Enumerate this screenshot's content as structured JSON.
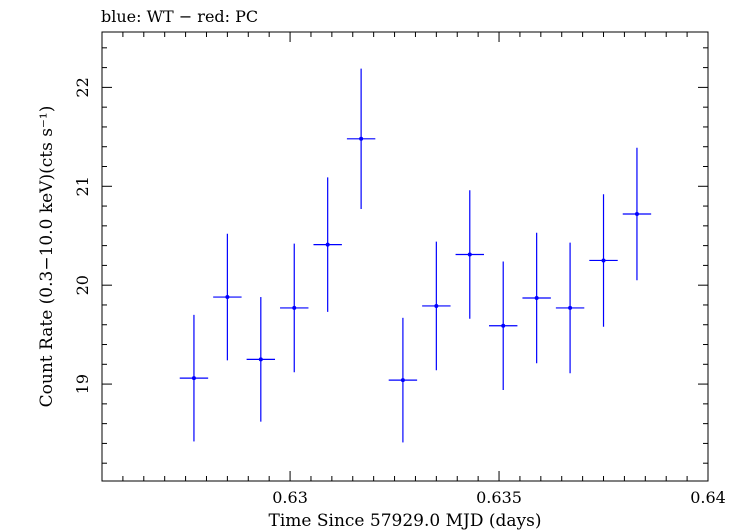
{
  "chart_data": {
    "type": "scatter",
    "title": "blue: WT − red: PC",
    "xlabel": "Time Since 57929.0 MJD (days)",
    "ylabel": "Count Rate (0.3−10.0 keV)(cts s⁻¹)",
    "xlim": [
      0.6255,
      0.64
    ],
    "ylim": [
      18.02,
      22.56
    ],
    "x_ticks": [
      0.63,
      0.635,
      0.64
    ],
    "x_tick_labels": [
      "0.63",
      "0.635",
      "0.64"
    ],
    "y_ticks": [
      19,
      20,
      21,
      22
    ],
    "y_tick_labels": [
      "19",
      "20",
      "21",
      "22"
    ],
    "grid": false,
    "series": [
      {
        "color": "#0000ff",
        "points": [
          {
            "x": 0.6277,
            "xerr": 0.00034,
            "y": 19.06,
            "yerr": 0.64
          },
          {
            "x": 0.6285,
            "xerr": 0.00034,
            "y": 19.88,
            "yerr": 0.64
          },
          {
            "x": 0.6293,
            "xerr": 0.00034,
            "y": 19.25,
            "yerr": 0.63
          },
          {
            "x": 0.6301,
            "xerr": 0.00034,
            "y": 19.77,
            "yerr": 0.65
          },
          {
            "x": 0.6309,
            "xerr": 0.00034,
            "y": 20.41,
            "yerr": 0.68
          },
          {
            "x": 0.6317,
            "xerr": 0.00034,
            "y": 21.48,
            "yerr": 0.71
          },
          {
            "x": 0.6327,
            "xerr": 0.00034,
            "y": 19.04,
            "yerr": 0.63
          },
          {
            "x": 0.6335,
            "xerr": 0.00034,
            "y": 19.79,
            "yerr": 0.65
          },
          {
            "x": 0.6343,
            "xerr": 0.00034,
            "y": 20.31,
            "yerr": 0.65
          },
          {
            "x": 0.6351,
            "xerr": 0.00034,
            "y": 19.59,
            "yerr": 0.65
          },
          {
            "x": 0.6359,
            "xerr": 0.00034,
            "y": 19.87,
            "yerr": 0.66
          },
          {
            "x": 0.6367,
            "xerr": 0.00034,
            "y": 19.77,
            "yerr": 0.66
          },
          {
            "x": 0.6375,
            "xerr": 0.00034,
            "y": 20.25,
            "yerr": 0.67
          },
          {
            "x": 0.6383,
            "xerr": 0.00034,
            "y": 20.72,
            "yerr": 0.67
          }
        ]
      }
    ]
  }
}
